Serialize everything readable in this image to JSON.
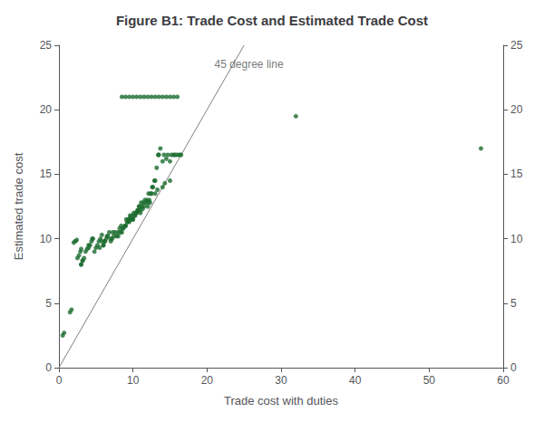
{
  "chart_data": {
    "type": "scatter",
    "title": "Figure B1: Trade Cost and Estimated Trade Cost",
    "xlabel": "Trade cost with duties",
    "ylabel": "Estimated trade cost",
    "xlim": [
      0,
      60
    ],
    "ylim": [
      0,
      25
    ],
    "xticks": [
      0,
      10,
      20,
      30,
      40,
      50,
      60
    ],
    "yticks": [
      0,
      5,
      10,
      15,
      20,
      25
    ],
    "y2lim": [
      0,
      25
    ],
    "y2ticks": [
      0,
      5,
      10,
      15,
      20,
      25
    ],
    "grid": false,
    "series": [
      {
        "type": "scatter",
        "color": "#1a6b2e",
        "x": [
          0.5,
          0.7,
          1.5,
          1.7,
          2.0,
          2.2,
          2.4,
          2.5,
          2.7,
          2.9,
          3.0,
          3.0,
          3.2,
          3.4,
          3.6,
          3.8,
          4.0,
          4.2,
          4.4,
          4.6,
          4.8,
          5.0,
          5.2,
          5.4,
          5.6,
          5.8,
          6.0,
          6.2,
          6.4,
          6.6,
          6.8,
          7.0,
          7.2,
          7.4,
          7.6,
          7.8,
          8.0,
          8.2,
          8.4,
          8.5,
          8.7,
          8.9,
          9.1,
          9.0,
          9.2,
          9.4,
          9.6,
          9.5,
          9.7,
          9.9,
          10.1,
          10.0,
          10.2,
          10.4,
          10.6,
          10.8,
          10.5,
          10.7,
          10.9,
          11.1,
          11.0,
          11.2,
          11.4,
          11.6,
          11.5,
          11.7,
          11.9,
          12.1,
          12.0,
          12.2,
          12.4,
          12.6,
          12.5,
          12.7,
          12.9,
          13.0,
          13.2,
          13.4,
          13.5,
          13.7,
          14.0,
          14.2,
          14.5,
          14.7,
          15.0,
          15.2,
          15.5,
          15.7,
          16.0,
          16.3,
          16.5,
          3.0,
          3.2,
          4.0,
          4.5,
          5.5,
          5.8,
          6.0,
          6.2,
          6.5,
          7.0,
          7.3,
          8.0,
          8.3,
          8.6,
          9.0,
          9.3,
          9.6,
          10.0,
          10.3,
          10.6,
          11.0,
          11.3,
          12.0,
          12.3,
          13.0,
          13.3,
          14.0,
          14.3,
          15.0,
          8.5,
          9.0,
          9.5,
          10.0,
          10.5,
          11.0,
          11.5,
          12.0,
          12.5,
          13.0,
          13.5,
          14.0,
          14.5,
          15.0,
          15.5,
          16.0,
          32.0,
          57.0
        ],
        "values": [
          2.5,
          2.7,
          4.3,
          4.5,
          9.7,
          9.8,
          9.9,
          8.5,
          8.7,
          9.0,
          9.2,
          8.0,
          8.3,
          8.5,
          9.0,
          9.2,
          9.3,
          9.5,
          9.8,
          10.0,
          9.0,
          9.3,
          9.5,
          9.8,
          10.0,
          10.3,
          9.5,
          9.8,
          10.0,
          10.2,
          10.5,
          9.8,
          10.0,
          10.2,
          10.5,
          10.2,
          10.5,
          10.8,
          11.0,
          10.5,
          10.8,
          11.0,
          11.5,
          11.0,
          11.3,
          11.5,
          11.8,
          11.3,
          11.5,
          11.8,
          12.0,
          11.5,
          11.8,
          12.0,
          12.2,
          12.5,
          12.0,
          12.2,
          12.5,
          12.8,
          12.2,
          12.5,
          12.8,
          13.0,
          12.5,
          12.8,
          13.0,
          13.5,
          12.8,
          13.0,
          13.5,
          14.0,
          13.5,
          14.0,
          14.5,
          14.5,
          15.5,
          16.5,
          16.5,
          17.0,
          16.0,
          16.5,
          16.2,
          16.5,
          16.0,
          16.5,
          16.5,
          16.5,
          16.5,
          16.5,
          16.5,
          8.0,
          8.3,
          9.5,
          10.0,
          9.3,
          9.8,
          9.5,
          9.8,
          10.2,
          10.0,
          10.5,
          10.2,
          10.5,
          10.8,
          11.0,
          11.3,
          11.6,
          11.5,
          11.8,
          12.1,
          12.0,
          12.3,
          12.5,
          12.8,
          13.5,
          13.8,
          14.0,
          14.3,
          14.5,
          21.0,
          21.0,
          21.0,
          21.0,
          21.0,
          21.0,
          21.0,
          21.0,
          21.0,
          21.0,
          21.0,
          21.0,
          21.0,
          21.0,
          21.0,
          21.0,
          19.5,
          17.0
        ]
      },
      {
        "type": "line",
        "color": "#808080",
        "x": [
          0,
          25
        ],
        "values": [
          0,
          25
        ]
      }
    ],
    "annotations": [
      {
        "text": "45 degree line",
        "x": 21,
        "y": 23.5,
        "color": "#555555"
      }
    ]
  }
}
